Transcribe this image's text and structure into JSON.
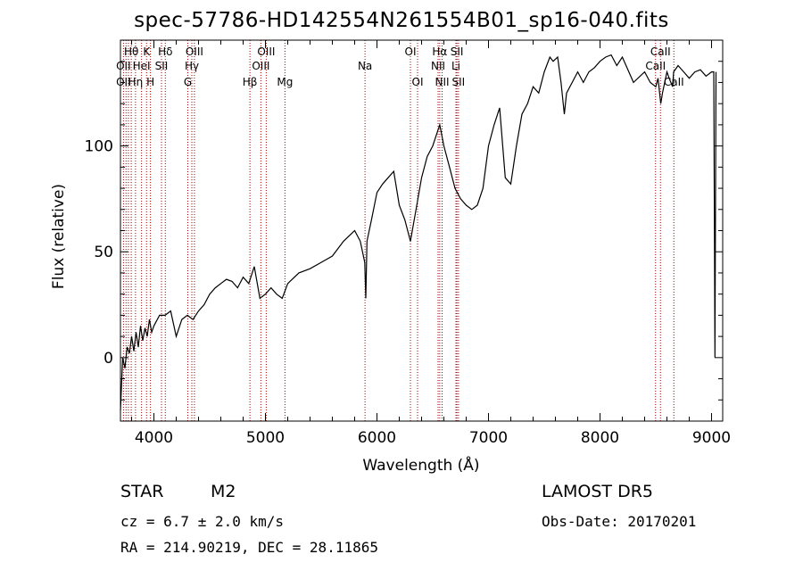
{
  "chart_data": {
    "type": "line",
    "title": "spec-57786-HD142554N261554B01_sp16-040.fits",
    "xlabel": "Wavelength (Å)",
    "ylabel": "Flux (relative)",
    "xlim": [
      3700,
      9100
    ],
    "ylim": [
      -30,
      150
    ],
    "xticks": [
      4000,
      5000,
      6000,
      7000,
      8000,
      9000
    ],
    "yticks": [
      0,
      50,
      100
    ],
    "grid": false,
    "series": [
      {
        "x": [
          3700,
          3720,
          3740,
          3760,
          3780,
          3800,
          3820,
          3840,
          3860,
          3880,
          3900,
          3920,
          3940,
          3960,
          3980,
          4000,
          4050,
          4100,
          4150,
          4200,
          4250,
          4300,
          4350,
          4400,
          4450,
          4500,
          4550,
          4600,
          4650,
          4700,
          4750,
          4800,
          4850,
          4900,
          4950,
          5000,
          5050,
          5100,
          5150,
          5200,
          5300,
          5400,
          5500,
          5600,
          5700,
          5800,
          5850,
          5890,
          5900,
          5910,
          5950,
          6000,
          6050,
          6100,
          6150,
          6200,
          6250,
          6300,
          6350,
          6400,
          6450,
          6500,
          6550,
          6563,
          6600,
          6650,
          6700,
          6750,
          6800,
          6850,
          6900,
          6950,
          7000,
          7050,
          7100,
          7150,
          7200,
          7250,
          7300,
          7350,
          7400,
          7450,
          7500,
          7550,
          7580,
          7620,
          7650,
          7680,
          7700,
          7750,
          7800,
          7850,
          7900,
          7950,
          8000,
          8050,
          8100,
          8150,
          8200,
          8300,
          8400,
          8450,
          8500,
          8520,
          8545,
          8560,
          8580,
          8600,
          8620,
          8650,
          8660,
          8700,
          8750,
          8800,
          8850,
          8900,
          8950,
          9000,
          9020,
          9030,
          9040
        ],
        "y": [
          -25,
          0,
          -5,
          5,
          2,
          10,
          3,
          12,
          5,
          15,
          8,
          14,
          10,
          18,
          12,
          15,
          20,
          20,
          22,
          10,
          18,
          20,
          18,
          22,
          25,
          30,
          33,
          35,
          37,
          36,
          33,
          38,
          35,
          43,
          28,
          30,
          33,
          30,
          28,
          35,
          40,
          42,
          45,
          48,
          55,
          60,
          55,
          45,
          28,
          55,
          65,
          78,
          82,
          85,
          88,
          72,
          65,
          55,
          70,
          85,
          95,
          100,
          108,
          110,
          100,
          90,
          80,
          75,
          72,
          70,
          72,
          80,
          100,
          110,
          118,
          85,
          82,
          100,
          115,
          120,
          128,
          125,
          135,
          142,
          140,
          142,
          130,
          115,
          125,
          130,
          135,
          130,
          135,
          137,
          140,
          142,
          143,
          138,
          142,
          130,
          135,
          130,
          128,
          132,
          120,
          125,
          130,
          135,
          132,
          128,
          135,
          138,
          135,
          132,
          135,
          136,
          133,
          135,
          135,
          0,
          135
        ]
      }
    ],
    "lines_top": [
      {
        "label": "Hθ",
        "x": 3797
      },
      {
        "label": "K",
        "x": 3934
      },
      {
        "label": "Hδ",
        "x": 4102
      },
      {
        "label": "OIII",
        "x": 4363
      },
      {
        "label": "OIII",
        "x": 5007
      },
      {
        "label": "OI",
        "x": 6300
      },
      {
        "label": "Hα",
        "x": 6563
      },
      {
        "label": "SII",
        "x": 6717
      },
      {
        "label": "CaII",
        "x": 8542
      }
    ],
    "lines_mid": [
      {
        "label": "OII",
        "x": 3727
      },
      {
        "label": "HeI",
        "x": 3889
      },
      {
        "label": "SII",
        "x": 4068
      },
      {
        "label": "Hγ",
        "x": 4340
      },
      {
        "label": "OIII",
        "x": 4959
      },
      {
        "label": "Na",
        "x": 5893
      },
      {
        "label": "NII",
        "x": 6548
      },
      {
        "label": "Li",
        "x": 6708
      },
      {
        "label": "CaII",
        "x": 8498
      }
    ],
    "lines_low": [
      {
        "label": "OII",
        "x": 3727
      },
      {
        "label": "Hη",
        "x": 3835
      },
      {
        "label": "H",
        "x": 3969
      },
      {
        "label": "G",
        "x": 4304
      },
      {
        "label": "Hβ",
        "x": 4861
      },
      {
        "label": "Mg",
        "x": 5175
      },
      {
        "label": "OI",
        "x": 6364
      },
      {
        "label": "NII",
        "x": 6584
      },
      {
        "label": "SII",
        "x": 6731
      },
      {
        "label": "CaII",
        "x": 8662
      }
    ],
    "red_lines": [
      3727,
      3750,
      3771,
      3797,
      3835,
      3889,
      3934,
      3969,
      4068,
      4102,
      4304,
      4340,
      4363,
      4861,
      4959,
      5007,
      5175,
      5893,
      6300,
      6364,
      6548,
      6563,
      6584,
      6708,
      6717,
      6731,
      8498,
      8542,
      8662
    ]
  },
  "info": {
    "object_type": "STAR",
    "subclass": "M2",
    "survey": "LAMOST DR5",
    "cz": "cz = 6.7 ± 2.0 km/s",
    "obs_date": "Obs-Date: 20170201",
    "coords": "RA = 214.90219, DEC =  28.11865"
  },
  "colors": {
    "axes": "#000000",
    "spectrum": "#000000",
    "line_markers": "#a00000"
  }
}
